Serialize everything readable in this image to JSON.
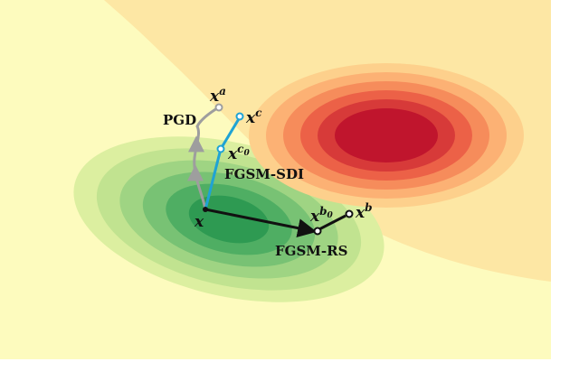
{
  "colors": {
    "background_light": "#fdfbbe",
    "background_region": "#fde7a4",
    "green_levels": [
      "#dcefa0",
      "#c1e390",
      "#9fd483",
      "#78c274",
      "#4fae63",
      "#2e9a52"
    ],
    "red_levels": [
      "#fdd08c",
      "#fcb174",
      "#f68c5b",
      "#ec6147",
      "#d73a39",
      "#c0152d"
    ],
    "pgd_path": "#9e9e9e",
    "sdi_path": "#1fa3d4",
    "rs_path": "#111111"
  },
  "points": {
    "x": "x",
    "xa": {
      "base": "x",
      "sup": "a"
    },
    "xc": {
      "base": "x",
      "sup": "c"
    },
    "xc0": {
      "base": "x",
      "sup": "c",
      "sub": "0"
    },
    "xb": {
      "base": "x",
      "sup": "b"
    },
    "xb0": {
      "base": "x",
      "sup": "b",
      "sub": "0"
    }
  },
  "methods": {
    "pgd": "PGD",
    "sdi": "FGSM-SDI",
    "rs": "FGSM-RS"
  }
}
